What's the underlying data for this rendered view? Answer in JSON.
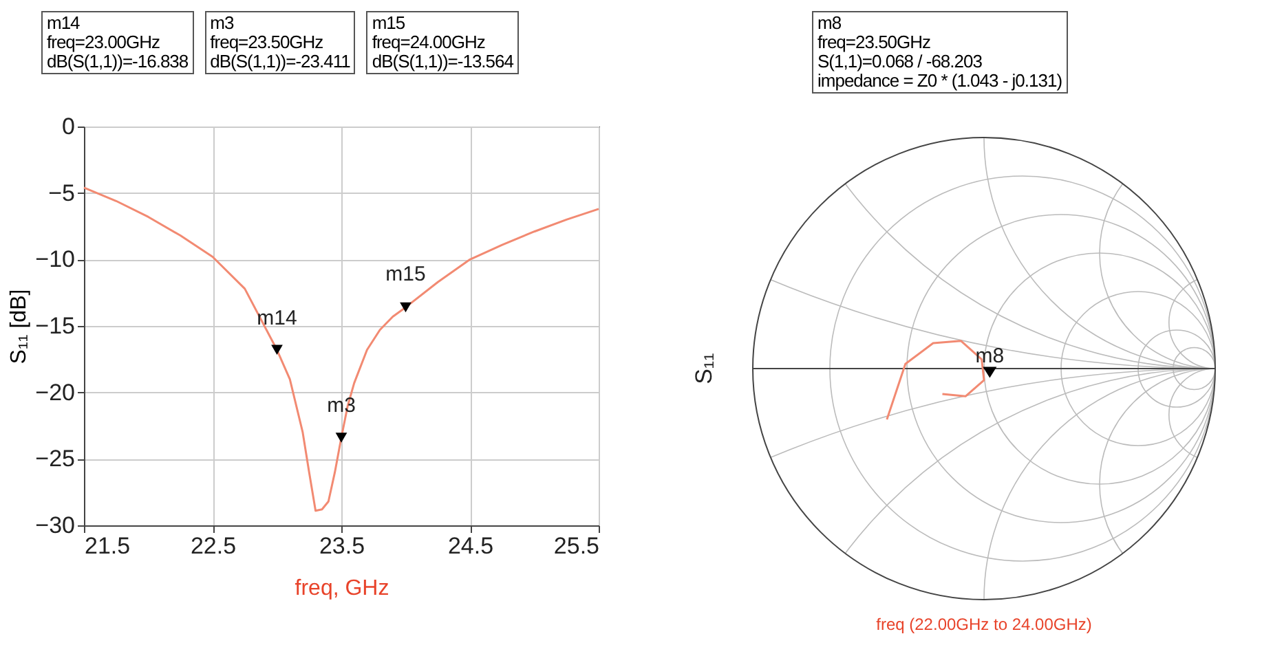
{
  "chart_data": [
    {
      "type": "line",
      "xlabel": "freq, GHz",
      "ylabel": "S₁₁ [dB]",
      "xlim": [
        21.5,
        25.5
      ],
      "ylim": [
        -30,
        0
      ],
      "xticks": [
        21.5,
        22.5,
        23.5,
        24.5,
        25.5
      ],
      "yticks": [
        -30,
        -25,
        -20,
        -15,
        -10,
        -5,
        0
      ],
      "grid": true,
      "series": [
        {
          "type": "line",
          "color": "#f28a72",
          "x": [
            21.5,
            21.75,
            22,
            22.25,
            22.5,
            22.75,
            23,
            23.1,
            23.2,
            23.25,
            23.3,
            23.35,
            23.4,
            23.45,
            23.5,
            23.55,
            23.6,
            23.7,
            23.8,
            23.9,
            24,
            24.25,
            24.5,
            24.75,
            25,
            25.25,
            25.5
          ],
          "values": [
            -4.6,
            -5.6,
            -6.8,
            -8.2,
            -9.8,
            -12.2,
            -16.8,
            -19.0,
            -23.0,
            -26.0,
            -28.9,
            -28.8,
            -28.2,
            -26.0,
            -23.4,
            -21.0,
            -19.3,
            -16.8,
            -15.3,
            -14.3,
            -13.6,
            -11.7,
            -10.0,
            -8.9,
            -7.9,
            -7.0,
            -6.2
          ]
        },
        {
          "type": "scatter",
          "color": "#000000",
          "marker": "triangle",
          "x": [
            23.0,
            23.5,
            24.0
          ],
          "values": [
            -16.8,
            -23.4,
            -13.6
          ]
        }
      ],
      "annotations": [
        "m14\nfreq=23.00GHz\ndB(S(1,1))=-16.838",
        "m3\nfreq=23.50GHz\ndB(S(1,1))=-23.411",
        "m15\nfreq=24.00GHz\ndB(S(1,1))=-13.564",
        {
          "text": "m14",
          "x": 23.0,
          "y": -16.838
        },
        {
          "text": "m3",
          "x": 23.5,
          "y": -23.411
        },
        {
          "text": "m15",
          "x": 24.0,
          "y": -13.564
        }
      ]
    },
    {
      "type": "other",
      "xlabel": "freq (22.00GHz to 24.00GHz)",
      "ylabel": "S₁₁",
      "annotations": [
        "m8\nfreq=23.50GHz\nS(1,1)=0.068 / -68.203\nimpedance = Z0 * (1.043 - j0.131)",
        "m8"
      ]
    }
  ]
}
